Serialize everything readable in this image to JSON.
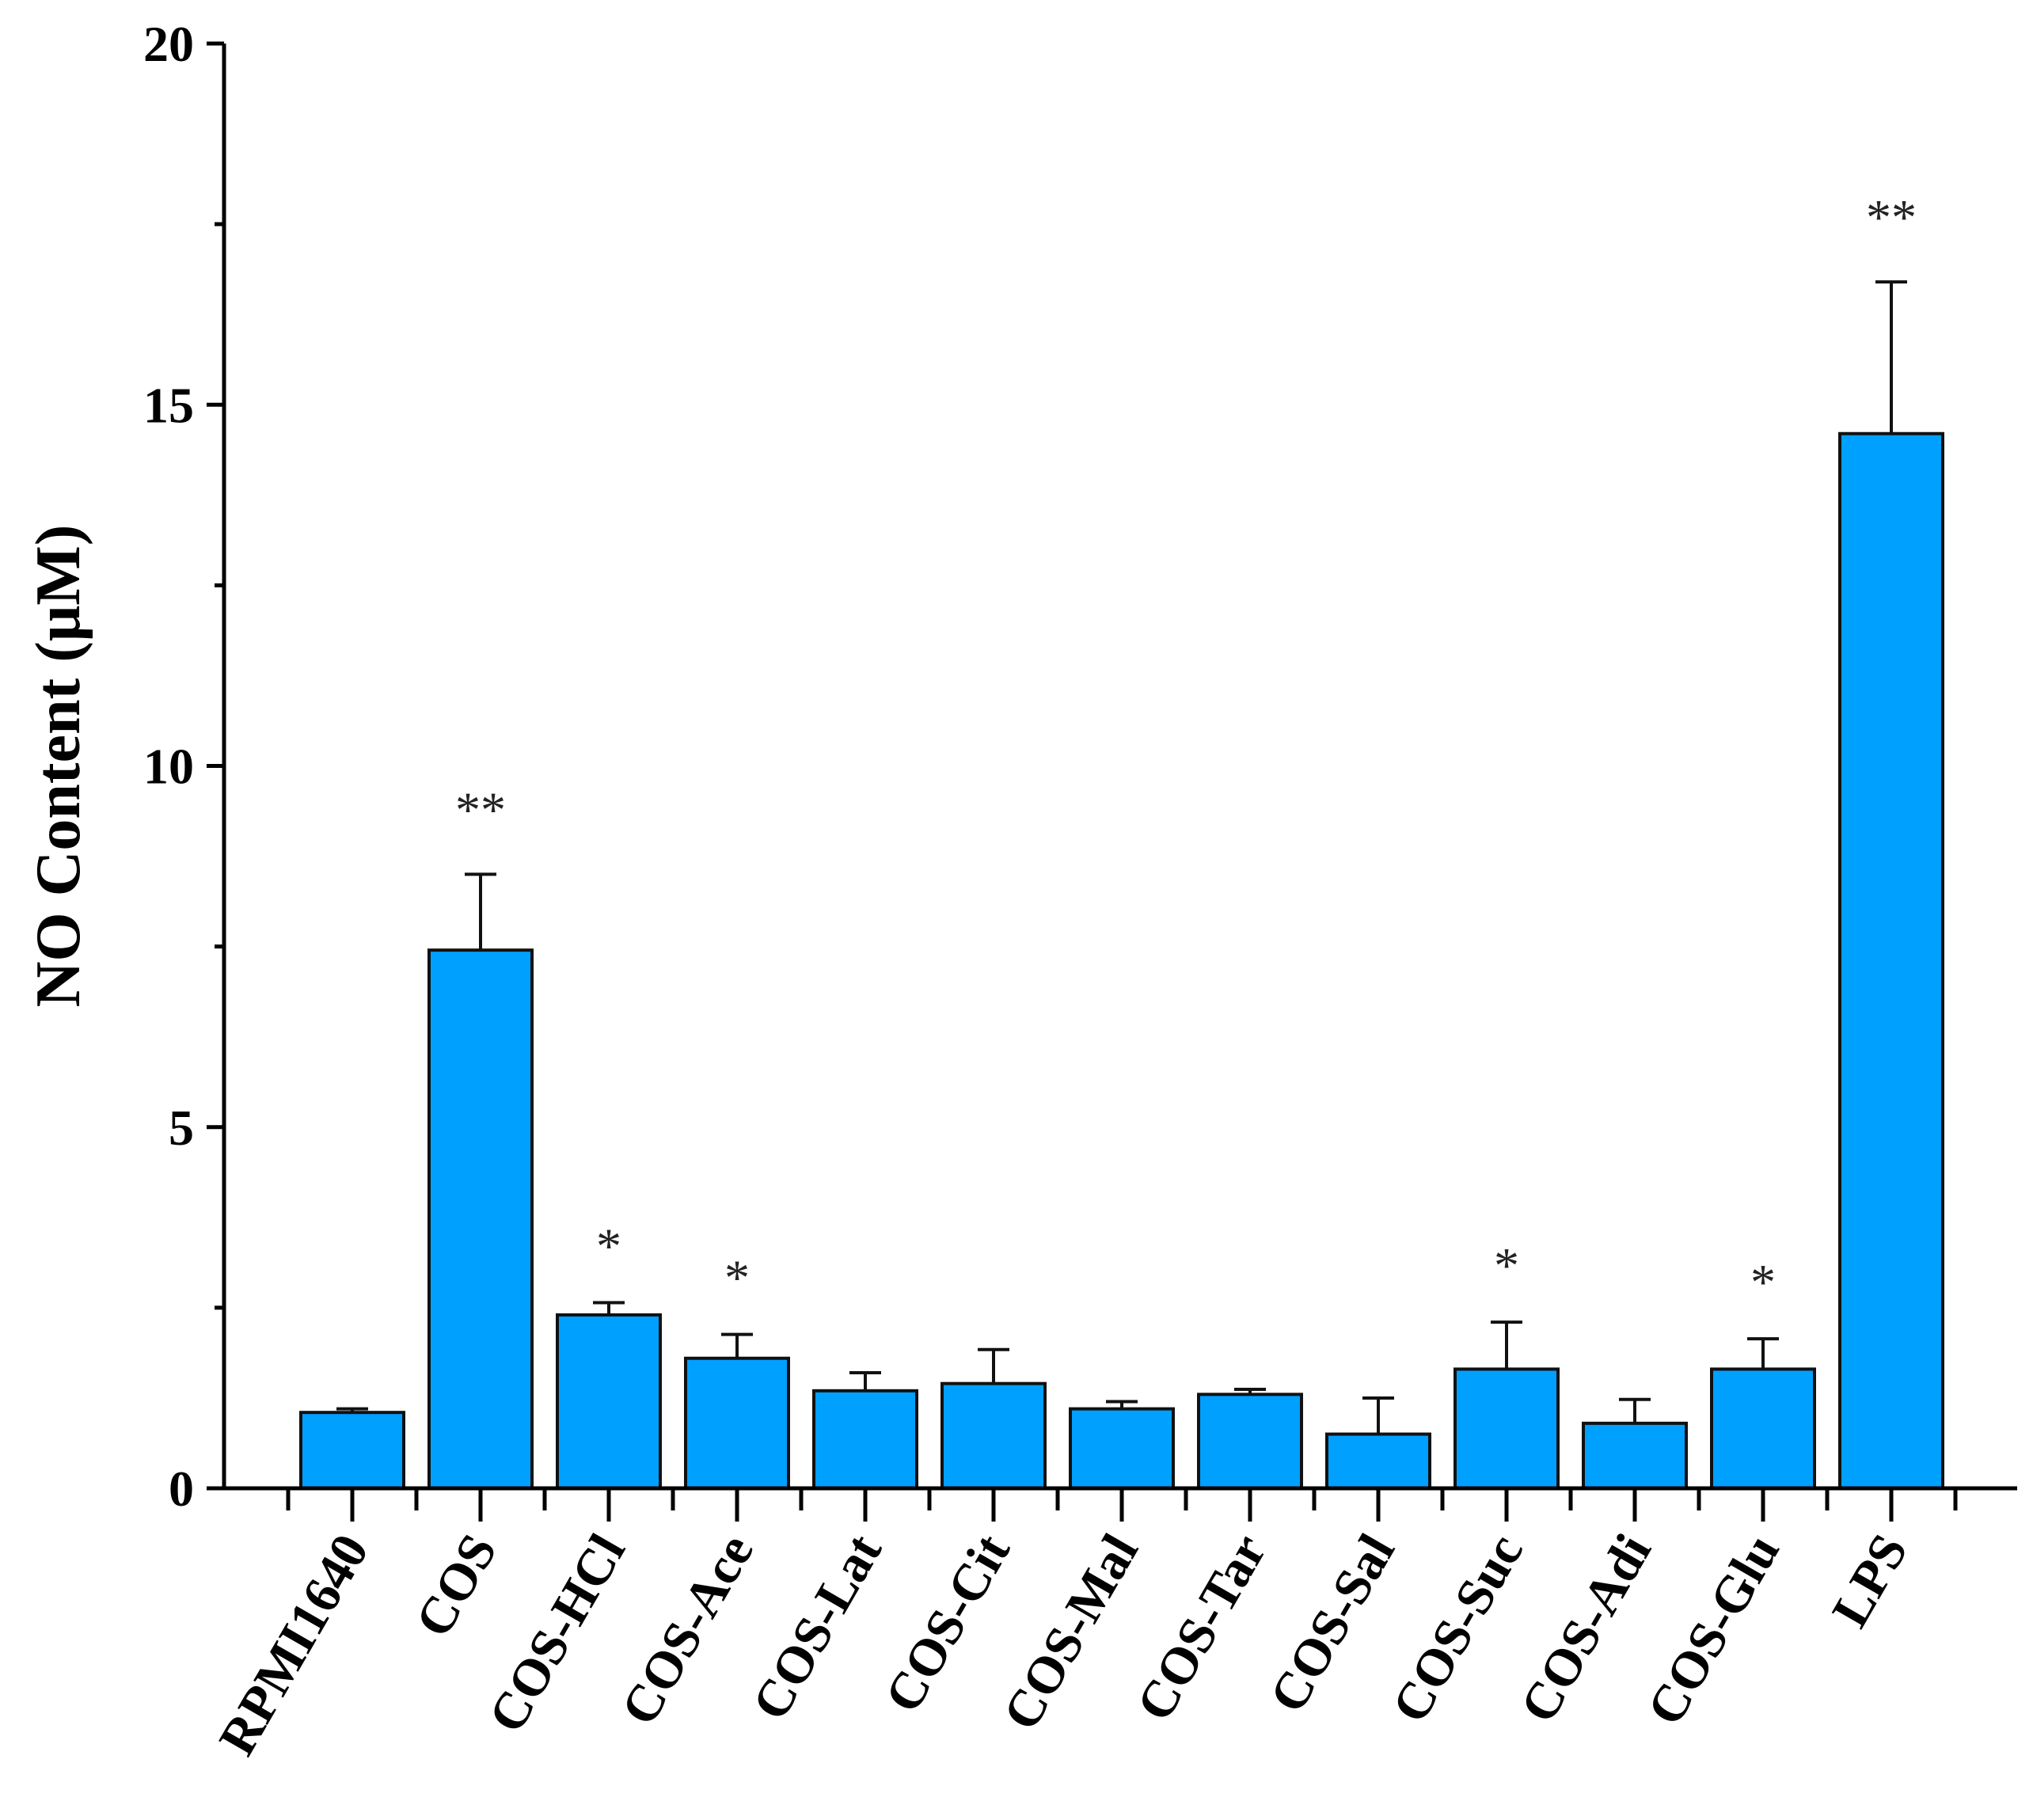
{
  "chart_data": {
    "type": "bar",
    "title": "",
    "xlabel": "",
    "ylabel": "NO Content (μM)",
    "ylim": [
      0,
      20
    ],
    "yticks": [
      0,
      5,
      10,
      15,
      20
    ],
    "bar_color": "#00a0ff",
    "categories": [
      "RPMI1640",
      "COS",
      "COS-HCl",
      "COS-Ace",
      "COS-Lat",
      "COS-Cit",
      "COS-Mal",
      "COS-Tar",
      "COS-Sal",
      "COS-Suc",
      "COS-Adi",
      "COS-Glu",
      "LPS"
    ],
    "values": [
      1.05,
      7.45,
      2.4,
      1.8,
      1.35,
      1.45,
      1.1,
      1.3,
      0.75,
      1.65,
      0.9,
      1.65,
      14.6
    ],
    "errors": [
      0.05,
      1.05,
      0.17,
      0.33,
      0.25,
      0.47,
      0.1,
      0.07,
      0.5,
      0.65,
      0.33,
      0.42,
      2.1
    ],
    "significance": [
      "",
      "**",
      "*",
      "*",
      "",
      "",
      "",
      "",
      "",
      "*",
      "",
      "*",
      "**"
    ]
  }
}
